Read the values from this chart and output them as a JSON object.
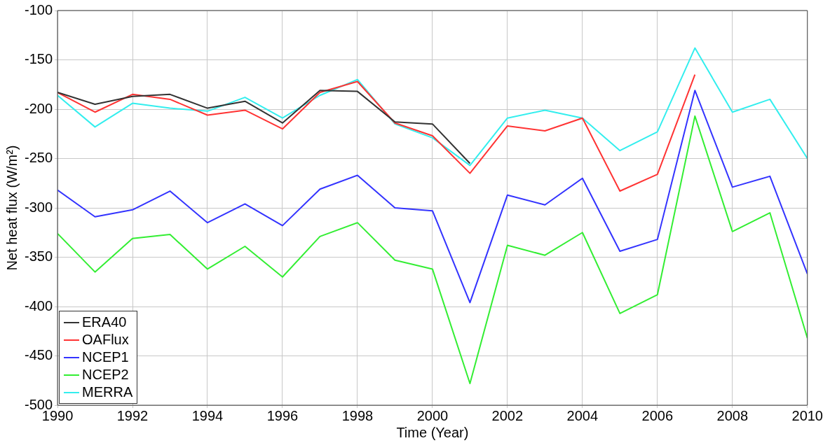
{
  "chart_data": {
    "type": "line",
    "xlabel": "Time (Year)",
    "ylabel": "Net heat flux (W/m²)",
    "x": [
      1990,
      1991,
      1992,
      1993,
      1994,
      1995,
      1996,
      1997,
      1998,
      1999,
      2000,
      2001,
      2002,
      2003,
      2004,
      2005,
      2006,
      2007,
      2008,
      2009,
      2010
    ],
    "series": [
      {
        "name": "ERA40",
        "color": "#333333",
        "values": [
          -183,
          -195,
          -187,
          -185,
          -199,
          -192,
          -214,
          -181,
          -182,
          -213,
          -215,
          -255,
          null,
          null,
          null,
          null,
          null,
          null,
          null,
          null,
          null
        ]
      },
      {
        "name": "OAFlux",
        "color": "#ff3333",
        "values": [
          -183,
          -203,
          -185,
          -190,
          -206,
          -201,
          -220,
          -183,
          -172,
          -214,
          -227,
          -265,
          -217,
          -222,
          -209,
          -283,
          -266,
          -165,
          null,
          null,
          null
        ]
      },
      {
        "name": "NCEP1",
        "color": "#3333ff",
        "values": [
          -282,
          -309,
          -302,
          -283,
          -315,
          -296,
          -318,
          -281,
          -267,
          -300,
          -303,
          -396,
          -287,
          -297,
          -270,
          -344,
          -332,
          -181,
          -279,
          -268,
          -367
        ]
      },
      {
        "name": "NCEP2",
        "color": "#33ee33",
        "values": [
          -326,
          -365,
          -331,
          -327,
          -362,
          -339,
          -370,
          -329,
          -315,
          -353,
          -362,
          -478,
          -338,
          -348,
          -325,
          -407,
          -388,
          -207,
          -324,
          -305,
          -432
        ]
      },
      {
        "name": "MERRA",
        "color": "#33eeee",
        "values": [
          -186,
          -218,
          -194,
          -199,
          -202,
          -188,
          -209,
          -186,
          -170,
          -215,
          -229,
          -257,
          -209,
          -201,
          -209,
          -242,
          -223,
          -138,
          -203,
          -190,
          -250
        ]
      }
    ],
    "xlim": [
      1990,
      2010
    ],
    "xticks": [
      1990,
      1992,
      1994,
      1996,
      1998,
      2000,
      2002,
      2004,
      2006,
      2008,
      2010
    ],
    "ylim": [
      -500,
      -100
    ],
    "yticks": [
      -500,
      -450,
      -400,
      -350,
      -300,
      -250,
      -200,
      -150,
      -100
    ],
    "grid": true,
    "legend": "bottom left",
    "marker": "none",
    "line_style": "solid"
  }
}
